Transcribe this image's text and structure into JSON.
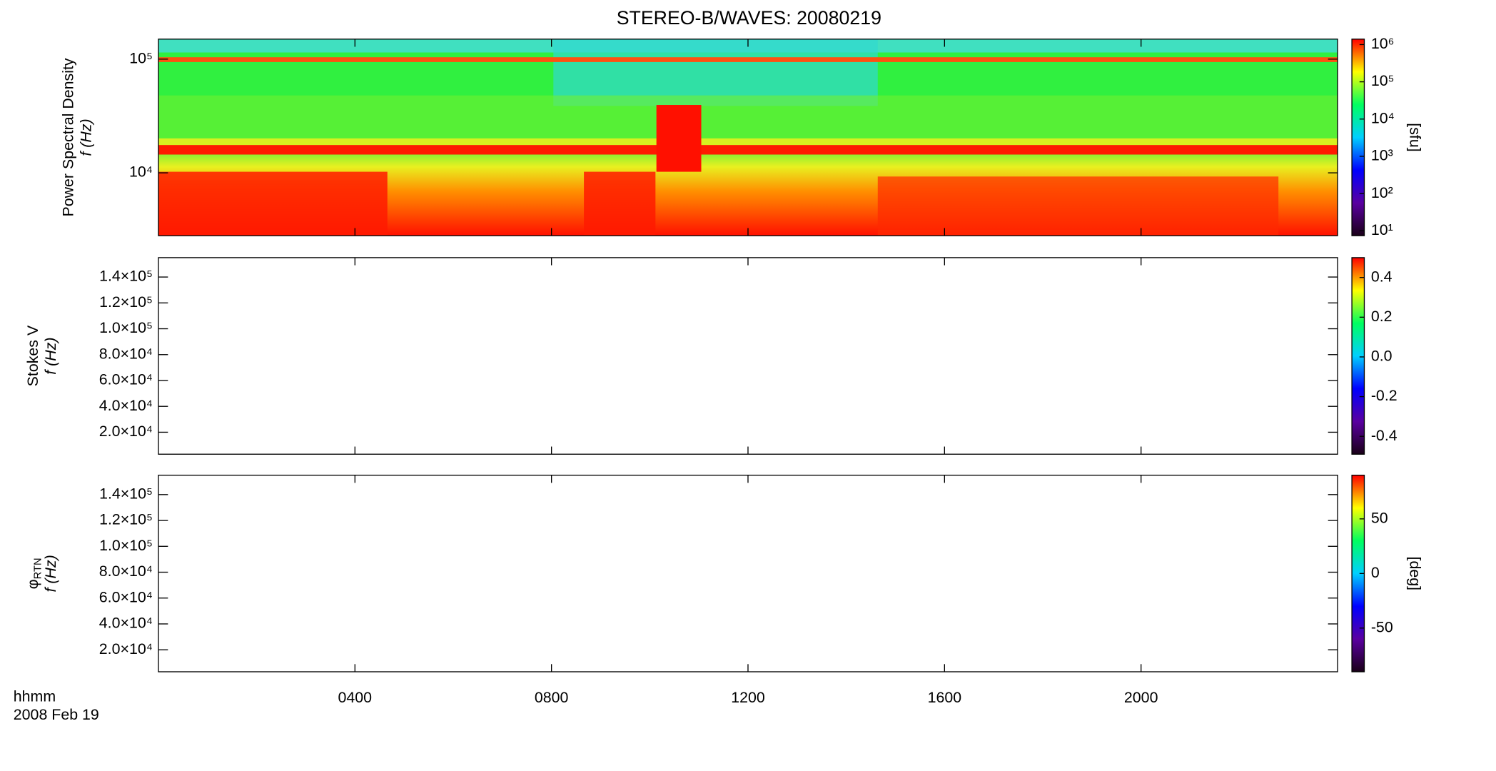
{
  "chart_data": [
    {
      "type": "spectrogram",
      "title": "STEREO-B/WAVES: 20080219",
      "ylabel": "Power Spectral Density",
      "ylabel2": "f (Hz)",
      "log": true,
      "ylim": [
        2800,
        150000
      ],
      "yticks": [
        {
          "value": 10000,
          "label": "10⁴"
        },
        {
          "value": 100000,
          "label": "10⁵"
        }
      ],
      "xlim": [
        0,
        24
      ],
      "xticks": [
        4,
        8,
        12,
        16,
        20
      ],
      "colorbar": {
        "label": "[sfu]",
        "log": true,
        "ylim": [
          7.4,
          1400000
        ],
        "yticks": [
          {
            "value": 10,
            "label": "10¹"
          },
          {
            "value": 100,
            "label": "10²"
          },
          {
            "value": 1000,
            "label": "10³"
          },
          {
            "value": 10000,
            "label": "10⁴"
          },
          {
            "value": 100000,
            "label": "10⁵"
          },
          {
            "value": 1000000,
            "label": "10⁶"
          }
        ]
      }
    },
    {
      "type": "spectrogram",
      "ylabel": "Stokes V",
      "ylabel2": "f (Hz)",
      "ylim": [
        3000,
        155000
      ],
      "yticks": [
        {
          "value": 20000,
          "label": "2.0×10⁴"
        },
        {
          "value": 40000,
          "label": "4.0×10⁴"
        },
        {
          "value": 60000,
          "label": "6.0×10⁴"
        },
        {
          "value": 80000,
          "label": "8.0×10⁴"
        },
        {
          "value": 100000,
          "label": "1.0×10⁵"
        },
        {
          "value": 120000,
          "label": "1.2×10⁵"
        },
        {
          "value": 140000,
          "label": "1.4×10⁵"
        }
      ],
      "xlim": [
        0,
        24
      ],
      "xticks": [
        4,
        8,
        12,
        16,
        20
      ],
      "colorbar": {
        "ylim": [
          -0.49,
          0.5
        ],
        "yticks": [
          -0.4,
          -0.2,
          {
            "value": 0,
            "label": "0.0"
          },
          0.2,
          0.4
        ]
      }
    },
    {
      "type": "spectrogram",
      "ylabel": "φ",
      "ylabel_subscript": "RTN",
      "ylabel2": "f (Hz)",
      "ylim": [
        3000,
        155000
      ],
      "yticks": [
        {
          "value": 20000,
          "label": "2.0×10⁴"
        },
        {
          "value": 40000,
          "label": "4.0×10⁴"
        },
        {
          "value": 60000,
          "label": "6.0×10⁴"
        },
        {
          "value": 80000,
          "label": "8.0×10⁴"
        },
        {
          "value": 100000,
          "label": "1.0×10⁵"
        },
        {
          "value": 120000,
          "label": "1.2×10⁵"
        },
        {
          "value": 140000,
          "label": "1.4×10⁵"
        }
      ],
      "xlim": [
        0,
        24
      ],
      "xticks": [
        {
          "value": 4,
          "label": "0400"
        },
        {
          "value": 8,
          "label": "0800"
        },
        {
          "value": 12,
          "label": "1200"
        },
        {
          "value": 16,
          "label": "1600"
        },
        {
          "value": 20,
          "label": "2000"
        }
      ],
      "xlabel": "hhmm",
      "xlabel2": "2008 Feb 19",
      "colorbar": {
        "label": "[deg]",
        "ylim": [
          -90,
          90
        ],
        "yticks": [
          -50,
          0,
          50
        ]
      }
    }
  ],
  "colormap": [
    "#1a0018",
    "#5a00a0",
    "#0000ff",
    "#00d0ff",
    "#00ff60",
    "#ffff00",
    "#ff0000"
  ]
}
